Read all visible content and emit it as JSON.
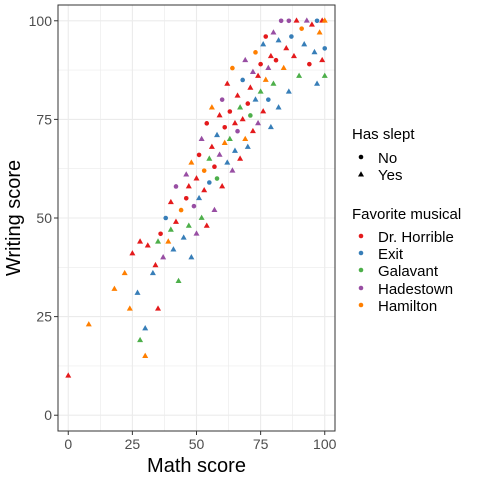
{
  "chart_data": {
    "type": "scatter",
    "xlabel": "Math score",
    "ylabel": "Writing score",
    "xlim": [
      -4,
      104
    ],
    "ylim": [
      -4,
      104
    ],
    "x_ticks": [
      0,
      25,
      50,
      75,
      100
    ],
    "y_ticks": [
      0,
      25,
      50,
      75,
      100
    ],
    "grid": true,
    "legend_position": "right",
    "shape_legend": {
      "title": "Has slept",
      "items": [
        {
          "label": "No",
          "shape": "circle"
        },
        {
          "label": "Yes",
          "shape": "triangle"
        }
      ]
    },
    "color_legend": {
      "title": "Favorite musical",
      "items": [
        {
          "label": "Dr. Horrible",
          "color": "#e41a1c"
        },
        {
          "label": "Exit",
          "color": "#377eb8"
        },
        {
          "label": "Galavant",
          "color": "#4daf4a"
        },
        {
          "label": "Hadestown",
          "color": "#984ea3"
        },
        {
          "label": "Hamilton",
          "color": "#ff7f00"
        }
      ]
    },
    "points": [
      {
        "x": 0,
        "y": 10,
        "group": "Dr. Horrible",
        "slept": "Yes"
      },
      {
        "x": 8,
        "y": 23,
        "group": "Hamilton",
        "slept": "Yes"
      },
      {
        "x": 18,
        "y": 32,
        "group": "Hamilton",
        "slept": "Yes"
      },
      {
        "x": 22,
        "y": 36,
        "group": "Hamilton",
        "slept": "Yes"
      },
      {
        "x": 24,
        "y": 27,
        "group": "Hamilton",
        "slept": "Yes"
      },
      {
        "x": 25,
        "y": 41,
        "group": "Dr. Horrible",
        "slept": "Yes"
      },
      {
        "x": 28,
        "y": 19,
        "group": "Galavant",
        "slept": "Yes"
      },
      {
        "x": 30,
        "y": 22,
        "group": "Exit",
        "slept": "Yes"
      },
      {
        "x": 30,
        "y": 15,
        "group": "Hamilton",
        "slept": "Yes"
      },
      {
        "x": 27,
        "y": 31,
        "group": "Exit",
        "slept": "Yes"
      },
      {
        "x": 28,
        "y": 44,
        "group": "Dr. Horrible",
        "slept": "Yes"
      },
      {
        "x": 31,
        "y": 43,
        "group": "Dr. Horrible",
        "slept": "Yes"
      },
      {
        "x": 33,
        "y": 36,
        "group": "Exit",
        "slept": "Yes"
      },
      {
        "x": 34,
        "y": 38,
        "group": "Dr. Horrible",
        "slept": "Yes"
      },
      {
        "x": 35,
        "y": 44,
        "group": "Galavant",
        "slept": "Yes"
      },
      {
        "x": 36,
        "y": 46,
        "group": "Dr. Horrible",
        "slept": "No"
      },
      {
        "x": 35,
        "y": 27,
        "group": "Dr. Horrible",
        "slept": "Yes"
      },
      {
        "x": 37,
        "y": 40,
        "group": "Hadestown",
        "slept": "Yes"
      },
      {
        "x": 38,
        "y": 50,
        "group": "Exit",
        "slept": "No"
      },
      {
        "x": 39,
        "y": 44,
        "group": "Hamilton",
        "slept": "Yes"
      },
      {
        "x": 40,
        "y": 47,
        "group": "Galavant",
        "slept": "Yes"
      },
      {
        "x": 40,
        "y": 54,
        "group": "Dr. Horrible",
        "slept": "Yes"
      },
      {
        "x": 41,
        "y": 42,
        "group": "Exit",
        "slept": "Yes"
      },
      {
        "x": 42,
        "y": 58,
        "group": "Hadestown",
        "slept": "No"
      },
      {
        "x": 42,
        "y": 49,
        "group": "Dr. Horrible",
        "slept": "Yes"
      },
      {
        "x": 43,
        "y": 34,
        "group": "Galavant",
        "slept": "Yes"
      },
      {
        "x": 44,
        "y": 52,
        "group": "Hamilton",
        "slept": "No"
      },
      {
        "x": 45,
        "y": 45,
        "group": "Exit",
        "slept": "Yes"
      },
      {
        "x": 46,
        "y": 55,
        "group": "Dr. Horrible",
        "slept": "No"
      },
      {
        "x": 46,
        "y": 61,
        "group": "Hadestown",
        "slept": "Yes"
      },
      {
        "x": 47,
        "y": 48,
        "group": "Galavant",
        "slept": "Yes"
      },
      {
        "x": 47,
        "y": 58,
        "group": "Dr. Horrible",
        "slept": "Yes"
      },
      {
        "x": 48,
        "y": 40,
        "group": "Exit",
        "slept": "Yes"
      },
      {
        "x": 48,
        "y": 64,
        "group": "Hamilton",
        "slept": "Yes"
      },
      {
        "x": 49,
        "y": 53,
        "group": "Hadestown",
        "slept": "No"
      },
      {
        "x": 50,
        "y": 60,
        "group": "Dr. Horrible",
        "slept": "Yes"
      },
      {
        "x": 50,
        "y": 46,
        "group": "Hadestown",
        "slept": "Yes"
      },
      {
        "x": 51,
        "y": 66,
        "group": "Dr. Horrible",
        "slept": "No"
      },
      {
        "x": 51,
        "y": 55,
        "group": "Exit",
        "slept": "Yes"
      },
      {
        "x": 52,
        "y": 50,
        "group": "Galavant",
        "slept": "Yes"
      },
      {
        "x": 52,
        "y": 70,
        "group": "Hadestown",
        "slept": "Yes"
      },
      {
        "x": 53,
        "y": 62,
        "group": "Hamilton",
        "slept": "No"
      },
      {
        "x": 53,
        "y": 57,
        "group": "Dr. Horrible",
        "slept": "Yes"
      },
      {
        "x": 54,
        "y": 74,
        "group": "Dr. Horrible",
        "slept": "No"
      },
      {
        "x": 54,
        "y": 48,
        "group": "Dr. Horrible",
        "slept": "Yes"
      },
      {
        "x": 55,
        "y": 65,
        "group": "Galavant",
        "slept": "Yes"
      },
      {
        "x": 55,
        "y": 59,
        "group": "Exit",
        "slept": "No"
      },
      {
        "x": 56,
        "y": 68,
        "group": "Dr. Horrible",
        "slept": "Yes"
      },
      {
        "x": 56,
        "y": 78,
        "group": "Hamilton",
        "slept": "Yes"
      },
      {
        "x": 57,
        "y": 52,
        "group": "Hadestown",
        "slept": "Yes"
      },
      {
        "x": 57,
        "y": 63,
        "group": "Dr. Horrible",
        "slept": "No"
      },
      {
        "x": 58,
        "y": 71,
        "group": "Exit",
        "slept": "Yes"
      },
      {
        "x": 58,
        "y": 60,
        "group": "Galavant",
        "slept": "No"
      },
      {
        "x": 59,
        "y": 76,
        "group": "Dr. Horrible",
        "slept": "Yes"
      },
      {
        "x": 59,
        "y": 66,
        "group": "Hadestown",
        "slept": "Yes"
      },
      {
        "x": 60,
        "y": 58,
        "group": "Dr. Horrible",
        "slept": "Yes"
      },
      {
        "x": 60,
        "y": 80,
        "group": "Hadestown",
        "slept": "No"
      },
      {
        "x": 61,
        "y": 69,
        "group": "Hamilton",
        "slept": "Yes"
      },
      {
        "x": 61,
        "y": 73,
        "group": "Dr. Horrible",
        "slept": "No"
      },
      {
        "x": 62,
        "y": 64,
        "group": "Exit",
        "slept": "Yes"
      },
      {
        "x": 62,
        "y": 84,
        "group": "Dr. Horrible",
        "slept": "Yes"
      },
      {
        "x": 63,
        "y": 70,
        "group": "Galavant",
        "slept": "Yes"
      },
      {
        "x": 63,
        "y": 77,
        "group": "Dr. Horrible",
        "slept": "No"
      },
      {
        "x": 64,
        "y": 62,
        "group": "Hadestown",
        "slept": "Yes"
      },
      {
        "x": 64,
        "y": 88,
        "group": "Hamilton",
        "slept": "No"
      },
      {
        "x": 65,
        "y": 74,
        "group": "Dr. Horrible",
        "slept": "Yes"
      },
      {
        "x": 65,
        "y": 67,
        "group": "Exit",
        "slept": "Yes"
      },
      {
        "x": 66,
        "y": 81,
        "group": "Dr. Horrible",
        "slept": "Yes"
      },
      {
        "x": 66,
        "y": 72,
        "group": "Hadestown",
        "slept": "No"
      },
      {
        "x": 67,
        "y": 78,
        "group": "Galavant",
        "slept": "Yes"
      },
      {
        "x": 67,
        "y": 65,
        "group": "Dr. Horrible",
        "slept": "Yes"
      },
      {
        "x": 68,
        "y": 85,
        "group": "Exit",
        "slept": "No"
      },
      {
        "x": 68,
        "y": 75,
        "group": "Dr. Horrible",
        "slept": "Yes"
      },
      {
        "x": 69,
        "y": 70,
        "group": "Hamilton",
        "slept": "Yes"
      },
      {
        "x": 69,
        "y": 90,
        "group": "Hadestown",
        "slept": "Yes"
      },
      {
        "x": 70,
        "y": 79,
        "group": "Dr. Horrible",
        "slept": "No"
      },
      {
        "x": 70,
        "y": 68,
        "group": "Exit",
        "slept": "Yes"
      },
      {
        "x": 71,
        "y": 83,
        "group": "Dr. Horrible",
        "slept": "Yes"
      },
      {
        "x": 71,
        "y": 76,
        "group": "Galavant",
        "slept": "No"
      },
      {
        "x": 72,
        "y": 87,
        "group": "Hadestown",
        "slept": "Yes"
      },
      {
        "x": 72,
        "y": 72,
        "group": "Dr. Horrible",
        "slept": "Yes"
      },
      {
        "x": 73,
        "y": 92,
        "group": "Hamilton",
        "slept": "No"
      },
      {
        "x": 73,
        "y": 80,
        "group": "Exit",
        "slept": "Yes"
      },
      {
        "x": 74,
        "y": 86,
        "group": "Dr. Horrible",
        "slept": "Yes"
      },
      {
        "x": 74,
        "y": 74,
        "group": "Hadestown",
        "slept": "Yes"
      },
      {
        "x": 75,
        "y": 89,
        "group": "Dr. Horrible",
        "slept": "No"
      },
      {
        "x": 75,
        "y": 82,
        "group": "Galavant",
        "slept": "Yes"
      },
      {
        "x": 76,
        "y": 94,
        "group": "Exit",
        "slept": "Yes"
      },
      {
        "x": 76,
        "y": 77,
        "group": "Dr. Horrible",
        "slept": "Yes"
      },
      {
        "x": 77,
        "y": 85,
        "group": "Hamilton",
        "slept": "Yes"
      },
      {
        "x": 77,
        "y": 96,
        "group": "Dr. Horrible",
        "slept": "No"
      },
      {
        "x": 78,
        "y": 88,
        "group": "Hadestown",
        "slept": "Yes"
      },
      {
        "x": 78,
        "y": 80,
        "group": "Exit",
        "slept": "No"
      },
      {
        "x": 79,
        "y": 91,
        "group": "Dr. Horrible",
        "slept": "Yes"
      },
      {
        "x": 79,
        "y": 73,
        "group": "Exit",
        "slept": "Yes"
      },
      {
        "x": 80,
        "y": 97,
        "group": "Hadestown",
        "slept": "Yes"
      },
      {
        "x": 80,
        "y": 84,
        "group": "Galavant",
        "slept": "Yes"
      },
      {
        "x": 81,
        "y": 90,
        "group": "Dr. Horrible",
        "slept": "No"
      },
      {
        "x": 82,
        "y": 95,
        "group": "Exit",
        "slept": "Yes"
      },
      {
        "x": 82,
        "y": 78,
        "group": "Exit",
        "slept": "Yes"
      },
      {
        "x": 83,
        "y": 100,
        "group": "Hadestown",
        "slept": "No"
      },
      {
        "x": 84,
        "y": 88,
        "group": "Hamilton",
        "slept": "Yes"
      },
      {
        "x": 85,
        "y": 93,
        "group": "Dr. Horrible",
        "slept": "Yes"
      },
      {
        "x": 86,
        "y": 100,
        "group": "Hadestown",
        "slept": "No"
      },
      {
        "x": 86,
        "y": 82,
        "group": "Exit",
        "slept": "Yes"
      },
      {
        "x": 87,
        "y": 96,
        "group": "Exit",
        "slept": "No"
      },
      {
        "x": 88,
        "y": 91,
        "group": "Dr. Horrible",
        "slept": "Yes"
      },
      {
        "x": 89,
        "y": 100,
        "group": "Dr. Horrible",
        "slept": "Yes"
      },
      {
        "x": 90,
        "y": 86,
        "group": "Galavant",
        "slept": "Yes"
      },
      {
        "x": 91,
        "y": 98,
        "group": "Hamilton",
        "slept": "No"
      },
      {
        "x": 92,
        "y": 94,
        "group": "Exit",
        "slept": "Yes"
      },
      {
        "x": 93,
        "y": 100,
        "group": "Hadestown",
        "slept": "Yes"
      },
      {
        "x": 94,
        "y": 89,
        "group": "Dr. Horrible",
        "slept": "No"
      },
      {
        "x": 95,
        "y": 99,
        "group": "Dr. Horrible",
        "slept": "Yes"
      },
      {
        "x": 96,
        "y": 92,
        "group": "Exit",
        "slept": "Yes"
      },
      {
        "x": 97,
        "y": 100,
        "group": "Exit",
        "slept": "No"
      },
      {
        "x": 98,
        "y": 97,
        "group": "Hamilton",
        "slept": "Yes"
      },
      {
        "x": 99,
        "y": 100,
        "group": "Dr. Horrible",
        "slept": "Yes"
      },
      {
        "x": 100,
        "y": 93,
        "group": "Exit",
        "slept": "No"
      },
      {
        "x": 100,
        "y": 86,
        "group": "Galavant",
        "slept": "Yes"
      },
      {
        "x": 100,
        "y": 100,
        "group": "Hamilton",
        "slept": "Yes"
      },
      {
        "x": 99,
        "y": 90,
        "group": "Dr. Horrible",
        "slept": "Yes"
      },
      {
        "x": 97,
        "y": 84,
        "group": "Exit",
        "slept": "Yes"
      }
    ]
  }
}
